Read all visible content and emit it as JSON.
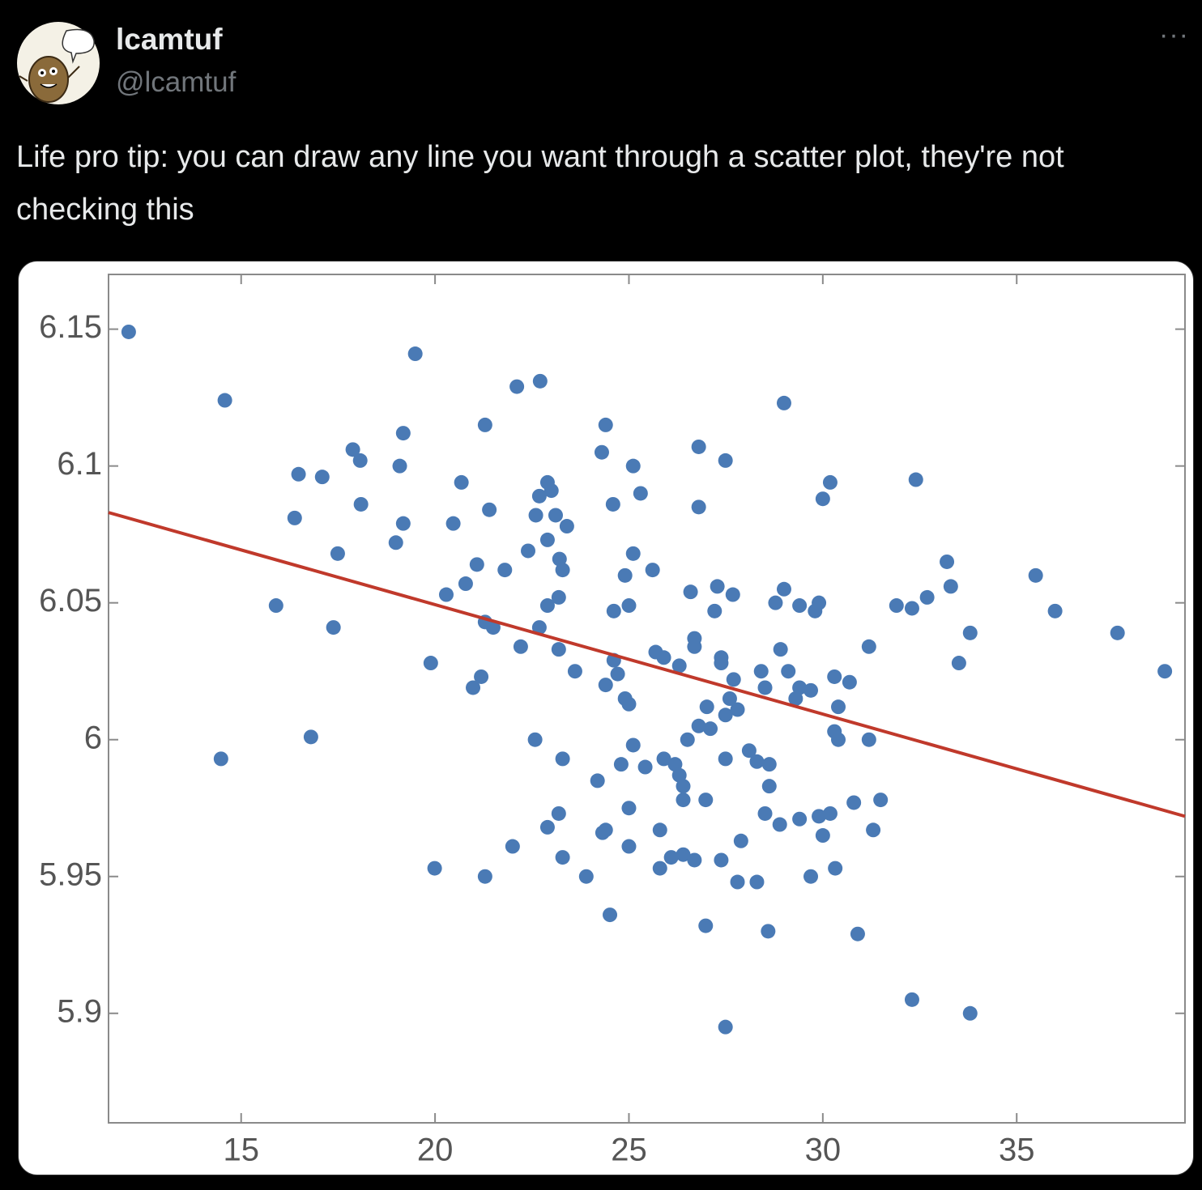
{
  "tweet": {
    "name": "lcamtuf",
    "handle": "@lcamtuf",
    "more": "···",
    "text": "Life pro tip: you can draw any line you want through a scatter plot, they're not checking this"
  },
  "chart_data": {
    "type": "scatter",
    "color": "#4a7ab5",
    "x": [
      12.1,
      14.58,
      14.48,
      15.9,
      16.8,
      16.38,
      16.48,
      17.09,
      17.49,
      17.38,
      17.88,
      18.07,
      18.09,
      18.99,
      19.09,
      19.18,
      19.18,
      19.49,
      19.89,
      19.99,
      20.29,
      20.47,
      20.68,
      20.79,
      21.08,
      20.98,
      21.19,
      21.29,
      21.29,
      21.29,
      21.4,
      21.5,
      21.8,
      22.0,
      22.11,
      22.21,
      22.4,
      22.6,
      22.58,
      22.71,
      22.69,
      22.69,
      22.9,
      22.9,
      23.0,
      22.9,
      22.9,
      23.11,
      23.19,
      23.19,
      23.19,
      23.21,
      23.29,
      23.29,
      23.29,
      23.4,
      23.61,
      23.9,
      24.19,
      24.3,
      24.4,
      24.32,
      24.4,
      24.51,
      24.4,
      24.59,
      24.61,
      24.61,
      24.71,
      24.8,
      24.9,
      24.9,
      25.0,
      25.0,
      25.0,
      25.0,
      25.11,
      25.11,
      25.11,
      25.3,
      25.42,
      25.61,
      25.69,
      25.8,
      25.8,
      25.9,
      25.9,
      26.09,
      26.19,
      26.3,
      26.3,
      26.4,
      26.4,
      26.4,
      26.51,
      26.59,
      26.69,
      26.69,
      26.69,
      26.8,
      26.8,
      26.8,
      26.98,
      26.98,
      27.01,
      27.1,
      27.21,
      27.28,
      27.38,
      27.38,
      27.38,
      27.49,
      27.49,
      27.49,
      27.49,
      27.6,
      27.68,
      27.7,
      27.8,
      27.8,
      27.89,
      28.1,
      28.3,
      28.3,
      28.41,
      28.51,
      28.51,
      28.59,
      28.62,
      28.62,
      28.78,
      28.89,
      28.91,
      29.0,
      29.0,
      29.11,
      29.3,
      29.4,
      29.4,
      29.4,
      29.69,
      29.69,
      29.8,
      29.9,
      29.9,
      30.0,
      30.0,
      30.19,
      30.19,
      30.3,
      30.3,
      30.4,
      30.4,
      30.32,
      30.69,
      30.8,
      30.9,
      31.19,
      31.19,
      31.3,
      31.49,
      31.9,
      32.3,
      32.3,
      32.4,
      32.69,
      33.2,
      33.3,
      33.51,
      33.8,
      33.8,
      35.49,
      35.99,
      37.6,
      38.82
    ],
    "y": [
      6.149,
      6.124,
      5.993,
      6.049,
      6.001,
      6.081,
      6.097,
      6.096,
      6.068,
      6.041,
      6.106,
      6.102,
      6.086,
      6.072,
      6.1,
      6.112,
      6.079,
      6.141,
      6.028,
      5.953,
      6.053,
      6.079,
      6.094,
      6.057,
      6.064,
      6.019,
      6.023,
      6.115,
      6.043,
      5.95,
      6.084,
      6.041,
      6.062,
      5.961,
      6.129,
      6.034,
      6.069,
      6.082,
      6.0,
      6.131,
      6.089,
      6.041,
      6.073,
      6.094,
      6.091,
      6.049,
      5.968,
      6.082,
      6.052,
      5.973,
      6.033,
      6.066,
      6.062,
      5.993,
      5.957,
      6.078,
      6.025,
      5.95,
      5.985,
      6.105,
      6.115,
      5.966,
      5.967,
      5.936,
      6.02,
      6.086,
      6.047,
      6.029,
      6.024,
      5.991,
      6.06,
      6.015,
      6.013,
      6.049,
      5.961,
      5.975,
      6.1,
      6.068,
      5.998,
      6.09,
      5.99,
      6.062,
      6.032,
      5.967,
      5.953,
      6.03,
      5.993,
      5.957,
      5.991,
      5.987,
      6.027,
      5.983,
      5.978,
      5.958,
      6.0,
      6.054,
      5.956,
      6.037,
      6.034,
      6.107,
      6.085,
      6.005,
      5.978,
      5.932,
      6.012,
      6.004,
      6.047,
      6.056,
      5.956,
      6.03,
      6.028,
      6.102,
      5.895,
      5.993,
      6.009,
      6.015,
      6.053,
      6.022,
      6.011,
      5.948,
      5.963,
      5.996,
      5.948,
      5.992,
      6.025,
      6.019,
      5.973,
      5.93,
      5.983,
      5.991,
      6.05,
      5.969,
      6.033,
      6.055,
      6.123,
      6.025,
      6.015,
      5.971,
      6.049,
      6.019,
      6.018,
      5.95,
      6.047,
      6.05,
      5.972,
      6.088,
      5.965,
      5.973,
      6.094,
      6.023,
      6.003,
      6.0,
      6.012,
      5.953,
      6.021,
      5.977,
      5.929,
      6.034,
      6.0,
      5.967,
      5.978,
      6.049,
      6.048,
      5.905,
      6.095,
      6.052,
      6.065,
      6.056,
      6.028,
      6.039,
      5.9,
      6.06,
      6.047,
      6.039,
      6.025
    ],
    "line": {
      "x": [
        11.58,
        39.34
      ],
      "y": [
        6.083,
        5.972
      ],
      "color": "#c0392b"
    },
    "xlim": [
      11.58,
      39.34
    ],
    "ylim": [
      5.86,
      6.17
    ],
    "xticks": [
      15,
      20,
      25,
      30,
      35
    ],
    "yticks": [
      5.9,
      5.95,
      6,
      6.05,
      6.1,
      6.15
    ]
  }
}
